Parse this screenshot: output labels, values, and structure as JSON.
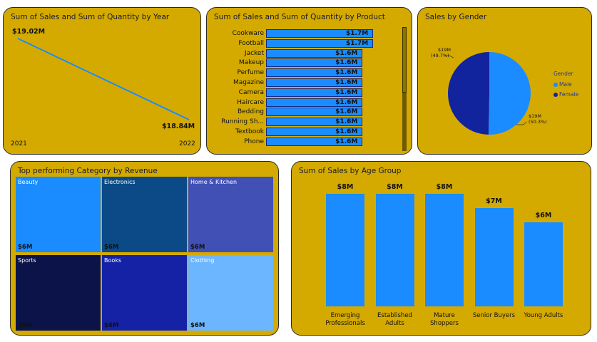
{
  "cards": {
    "year_title": "Sum of Sales and Sum of Quantity by Year",
    "product_title": "Sum of Sales and Sum of Quantity by Product",
    "gender_title": "Sales by Gender",
    "category_title": "Top performing Category by Revenue",
    "age_title": "Sum of Sales by Age Group"
  },
  "chart_data": [
    {
      "type": "line",
      "title": "Sum of Sales and Sum of Quantity by Year",
      "x": [
        "2021",
        "2022"
      ],
      "series": [
        {
          "values": [
            19.02,
            18.84
          ]
        }
      ],
      "data_labels": [
        "$19.02M",
        "$18.84M"
      ],
      "unit": "$M"
    },
    {
      "type": "bar",
      "orientation": "horizontal",
      "title": "Sum of Sales and Sum of Quantity by Product",
      "categories": [
        "Cookware",
        "Football",
        "Jacket",
        "Makeup",
        "Perfume",
        "Magazine",
        "Camera",
        "Haircare",
        "Bedding",
        "Running Sh...",
        "Textbook",
        "Phone"
      ],
      "values": [
        1.7,
        1.7,
        1.6,
        1.6,
        1.6,
        1.6,
        1.6,
        1.6,
        1.6,
        1.6,
        1.6,
        1.6
      ],
      "data_labels": [
        "$1.7M",
        "$1.7M",
        "$1.6M",
        "$1.6M",
        "$1.6M",
        "$1.6M",
        "$1.6M",
        "$1.6M",
        "$1.6M",
        "$1.6M",
        "$1.6M",
        "$1.6M"
      ],
      "unit": "$M"
    },
    {
      "type": "pie",
      "title": "Sales by Gender",
      "legend_title": "Gender",
      "legend_position": "right",
      "categories": [
        "Male",
        "Female"
      ],
      "values": [
        50.3,
        49.7
      ],
      "value_labels": [
        "$19M",
        "$19M"
      ],
      "percent_labels": [
        "(50.3%)",
        "(49.7%)"
      ],
      "colors": [
        "#1a8cff",
        "#12239e"
      ]
    },
    {
      "type": "treemap",
      "title": "Top performing Category by Revenue",
      "categories": [
        "Beauty",
        "Electronics",
        "Home & Kitchen",
        "Sports",
        "Books",
        "Clothing"
      ],
      "values": [
        6,
        6,
        6,
        6,
        6,
        6
      ],
      "data_labels": [
        "$6M",
        "$6M",
        "$6M",
        "$6M",
        "$6M",
        "$6M"
      ],
      "colors": [
        "#1a8cff",
        "#0b4a86",
        "#4050b5",
        "#0b1348",
        "#1522a5",
        "#6cb6ff"
      ]
    },
    {
      "type": "bar",
      "title": "Sum of Sales by Age Group",
      "categories": [
        "Emerging Professionals",
        "Established Adults",
        "Mature Shoppers",
        "Senior Buyers",
        "Young Adults"
      ],
      "values": [
        8,
        8,
        8,
        7,
        6
      ],
      "data_labels": [
        "$8M",
        "$8M",
        "$8M",
        "$7M",
        "$6M"
      ],
      "unit": "$M"
    }
  ]
}
